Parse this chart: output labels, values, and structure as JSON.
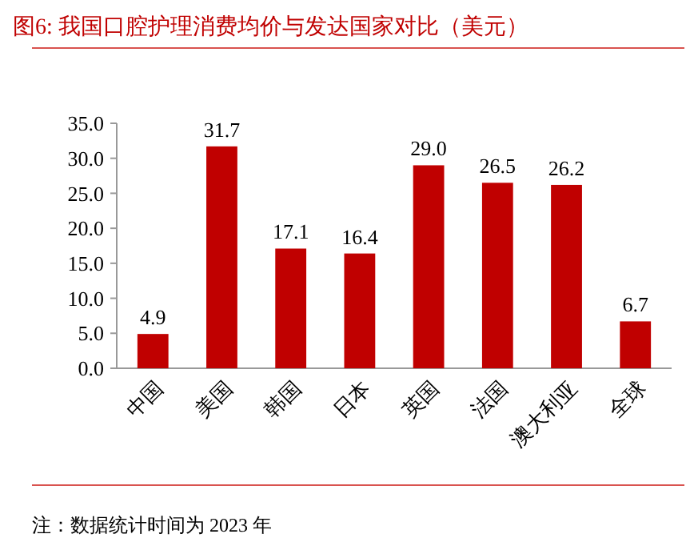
{
  "chart_data": {
    "type": "bar",
    "title": "图6:  我国口腔护理消费均价与发达国家对比（美元）",
    "categories": [
      "中国",
      "美国",
      "韩国",
      "日本",
      "英国",
      "法国",
      "澳大利亚",
      "全球"
    ],
    "values": [
      4.9,
      31.7,
      17.1,
      16.4,
      29.0,
      26.5,
      26.2,
      6.7
    ],
    "value_labels": [
      "4.9",
      "31.7",
      "17.1",
      "16.4",
      "29.0",
      "26.5",
      "26.2",
      "6.7"
    ],
    "color": "#c00000",
    "ylim": [
      0,
      35
    ],
    "yticks": [
      {
        "value": 0,
        "label": "0.0"
      },
      {
        "value": 5,
        "label": "5.0"
      },
      {
        "value": 10,
        "label": "10.0"
      },
      {
        "value": 15,
        "label": "15.0"
      },
      {
        "value": 20,
        "label": "20.0"
      },
      {
        "value": 25,
        "label": "25.0"
      },
      {
        "value": 30,
        "label": "30.0"
      },
      {
        "value": 35,
        "label": "35.0"
      }
    ],
    "grid": false,
    "annotations": [
      "注：数据统计时间为 2023 年"
    ]
  }
}
